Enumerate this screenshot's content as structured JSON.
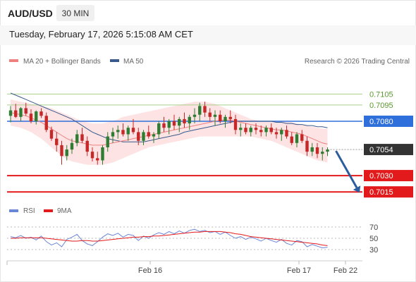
{
  "header": {
    "pair": "AUD/USD",
    "timeframe": "30 MIN",
    "datetime": "Tuesday, February 17, 2026 5:15:08 AM CET"
  },
  "legend": {
    "ma20": "MA 20 + Bollinger Bands",
    "ma50": "MA 50",
    "credit": "Research © 2026 Trading Central"
  },
  "rsi_legend": {
    "rsi": "RSI",
    "ma9": "9MA"
  },
  "colors": {
    "ma20": "#f08080",
    "bands": "#fde3e3",
    "ma50": "#3a5a8c",
    "candle_up": "#2e7d32",
    "candle_down": "#c62828",
    "resistance_green": "#a8d08d",
    "pivot": "#2f6fdc",
    "support_red": "#e31a1c",
    "current": "#333333",
    "arrow": "#2b5c9e",
    "rsi": "#6a86d8",
    "rsi_ma": "#e31a1c"
  },
  "chart_data": [
    {
      "type": "candlestick",
      "title": "AUD/USD",
      "timeframe": "30 MIN",
      "x_tick_labels": [
        "Feb 16",
        "Feb 17",
        "Feb 22"
      ],
      "ylim": [
        0.7008,
        0.7115
      ],
      "levels": [
        {
          "value": 0.7105,
          "label": "0.7105",
          "role": "resistance",
          "color": "#a8d08d"
        },
        {
          "value": 0.7095,
          "label": "0.7095",
          "role": "resistance",
          "color": "#a8d08d"
        },
        {
          "value": 0.708,
          "label": "0.7080",
          "role": "pivot",
          "color": "#2f6fdc"
        },
        {
          "value": 0.7054,
          "label": "0.7054",
          "role": "current",
          "color": "#333333"
        },
        {
          "value": 0.703,
          "label": "0.7030",
          "role": "support",
          "color": "#e31a1c"
        },
        {
          "value": 0.7015,
          "label": "0.7015",
          "role": "support",
          "color": "#e31a1c"
        }
      ],
      "forecast_arrow": {
        "from": 0.7054,
        "to": 0.7015,
        "direction": "down"
      },
      "candles": [
        [
          0.7085,
          0.7094,
          0.7079,
          0.709
        ],
        [
          0.709,
          0.7096,
          0.7083,
          0.7084
        ],
        [
          0.7084,
          0.7093,
          0.708,
          0.7092
        ],
        [
          0.7092,
          0.7097,
          0.7085,
          0.7087
        ],
        [
          0.7087,
          0.7091,
          0.7078,
          0.708
        ],
        [
          0.708,
          0.709,
          0.7077,
          0.7089
        ],
        [
          0.7089,
          0.7092,
          0.7083,
          0.7085
        ],
        [
          0.7085,
          0.7088,
          0.707,
          0.7072
        ],
        [
          0.7072,
          0.7075,
          0.7062,
          0.7064
        ],
        [
          0.7064,
          0.707,
          0.7052,
          0.7058
        ],
        [
          0.7058,
          0.7062,
          0.704,
          0.7048
        ],
        [
          0.7048,
          0.7058,
          0.7044,
          0.7054
        ],
        [
          0.7054,
          0.7064,
          0.705,
          0.706
        ],
        [
          0.706,
          0.7072,
          0.7057,
          0.7068
        ],
        [
          0.7068,
          0.7074,
          0.706,
          0.7062
        ],
        [
          0.7062,
          0.7066,
          0.7048,
          0.7052
        ],
        [
          0.7052,
          0.7056,
          0.7043,
          0.7046
        ],
        [
          0.7046,
          0.7052,
          0.704,
          0.7044
        ],
        [
          0.7044,
          0.7058,
          0.704,
          0.7056
        ],
        [
          0.7056,
          0.707,
          0.7052,
          0.7066
        ],
        [
          0.7066,
          0.7074,
          0.706,
          0.707
        ],
        [
          0.707,
          0.7076,
          0.7064,
          0.7072
        ],
        [
          0.7072,
          0.7078,
          0.7066,
          0.7068
        ],
        [
          0.7068,
          0.7076,
          0.7062,
          0.7074
        ],
        [
          0.7074,
          0.7082,
          0.7068,
          0.707
        ],
        [
          0.707,
          0.7074,
          0.7058,
          0.7062
        ],
        [
          0.7062,
          0.7072,
          0.7058,
          0.707
        ],
        [
          0.707,
          0.7076,
          0.7064,
          0.7066
        ],
        [
          0.7066,
          0.707,
          0.706,
          0.7068
        ],
        [
          0.7068,
          0.708,
          0.7064,
          0.7078
        ],
        [
          0.7078,
          0.7084,
          0.707,
          0.7074
        ],
        [
          0.7074,
          0.7082,
          0.7068,
          0.708
        ],
        [
          0.708,
          0.7086,
          0.7072,
          0.7076
        ],
        [
          0.7076,
          0.7084,
          0.707,
          0.7082
        ],
        [
          0.7082,
          0.7088,
          0.7074,
          0.7078
        ],
        [
          0.7078,
          0.7086,
          0.7072,
          0.7084
        ],
        [
          0.7084,
          0.7092,
          0.7078,
          0.7086
        ],
        [
          0.7086,
          0.7097,
          0.708,
          0.7094
        ],
        [
          0.7094,
          0.7098,
          0.7084,
          0.7088
        ],
        [
          0.7088,
          0.7092,
          0.708,
          0.7084
        ],
        [
          0.7084,
          0.709,
          0.7076,
          0.7086
        ],
        [
          0.7086,
          0.709,
          0.7078,
          0.708
        ],
        [
          0.708,
          0.7086,
          0.7074,
          0.7084
        ],
        [
          0.7084,
          0.709,
          0.7078,
          0.7082
        ],
        [
          0.7082,
          0.7086,
          0.7068,
          0.7072
        ],
        [
          0.7072,
          0.7078,
          0.7066,
          0.7074
        ],
        [
          0.7074,
          0.7078,
          0.7068,
          0.707
        ],
        [
          0.707,
          0.7076,
          0.7066,
          0.7074
        ],
        [
          0.7074,
          0.7078,
          0.7068,
          0.7072
        ],
        [
          0.7072,
          0.7076,
          0.7066,
          0.707
        ],
        [
          0.707,
          0.7076,
          0.7066,
          0.7074
        ],
        [
          0.7074,
          0.7078,
          0.7068,
          0.707
        ],
        [
          0.707,
          0.7074,
          0.7064,
          0.7068
        ],
        [
          0.7068,
          0.7074,
          0.7062,
          0.7072
        ],
        [
          0.7072,
          0.7076,
          0.7064,
          0.7066
        ],
        [
          0.7066,
          0.707,
          0.7058,
          0.706
        ],
        [
          0.706,
          0.707,
          0.7056,
          0.7068
        ],
        [
          0.7068,
          0.7072,
          0.706,
          0.7062
        ],
        [
          0.7062,
          0.7066,
          0.7048,
          0.7052
        ],
        [
          0.7052,
          0.706,
          0.7048,
          0.7056
        ],
        [
          0.7056,
          0.706,
          0.7046,
          0.705
        ],
        [
          0.705,
          0.7056,
          0.7044,
          0.7052
        ],
        [
          0.7052,
          0.7056,
          0.7048,
          0.7054
        ]
      ],
      "ma20": [
        0.7088,
        0.7087,
        0.7086,
        0.7085,
        0.7083,
        0.7081,
        0.7079,
        0.7076,
        0.7073,
        0.707,
        0.7067,
        0.7064,
        0.7062,
        0.7061,
        0.706,
        0.7059,
        0.7058,
        0.7058,
        0.7058,
        0.7059,
        0.706,
        0.7061,
        0.7062,
        0.7063,
        0.7064,
        0.7065,
        0.7066,
        0.7067,
        0.7068,
        0.7069,
        0.707,
        0.7071,
        0.7072,
        0.7073,
        0.7074,
        0.7075,
        0.7076,
        0.7077,
        0.7078,
        0.7079,
        0.708,
        0.7081,
        0.7081,
        0.7081,
        0.708,
        0.7079,
        0.7078,
        0.7077,
        0.7076,
        0.7075,
        0.7074,
        0.7073,
        0.7072,
        0.7072,
        0.7071,
        0.707,
        0.7069,
        0.7068,
        0.7066,
        0.7064,
        0.7062,
        0.706,
        0.7059
      ],
      "bb_upper": [
        0.71,
        0.7099,
        0.7098,
        0.7097,
        0.7096,
        0.7095,
        0.7094,
        0.7093,
        0.7092,
        0.709,
        0.7088,
        0.7086,
        0.7084,
        0.7082,
        0.708,
        0.7079,
        0.7078,
        0.7078,
        0.7078,
        0.7079,
        0.708,
        0.7082,
        0.7084,
        0.7085,
        0.7086,
        0.7087,
        0.7088,
        0.7089,
        0.709,
        0.7091,
        0.7092,
        0.7093,
        0.7094,
        0.7095,
        0.7096,
        0.7097,
        0.7098,
        0.7098,
        0.7098,
        0.7097,
        0.7096,
        0.7094,
        0.7092,
        0.709,
        0.7088,
        0.7086,
        0.7084,
        0.7082,
        0.7081,
        0.708,
        0.708,
        0.708,
        0.708,
        0.708,
        0.708,
        0.7079,
        0.7078,
        0.7077,
        0.7076,
        0.7075,
        0.7074,
        0.7073,
        0.7073
      ],
      "bb_lower": [
        0.7076,
        0.7075,
        0.7074,
        0.7072,
        0.707,
        0.7067,
        0.7064,
        0.706,
        0.7056,
        0.7052,
        0.7048,
        0.7045,
        0.7043,
        0.7042,
        0.7041,
        0.704,
        0.704,
        0.704,
        0.704,
        0.7041,
        0.7042,
        0.7044,
        0.7046,
        0.7048,
        0.705,
        0.7052,
        0.7054,
        0.7056,
        0.7057,
        0.7058,
        0.7059,
        0.706,
        0.7061,
        0.7062,
        0.7063,
        0.7064,
        0.7065,
        0.7066,
        0.7066,
        0.7066,
        0.7066,
        0.7066,
        0.7066,
        0.7066,
        0.7066,
        0.7066,
        0.7066,
        0.7066,
        0.7065,
        0.7064,
        0.7063,
        0.7062,
        0.706,
        0.7058,
        0.7056,
        0.7054,
        0.7052,
        0.705,
        0.7048,
        0.7046,
        0.7044,
        0.7043,
        0.7042
      ],
      "ma50": [
        0.7106,
        0.7104,
        0.7102,
        0.71,
        0.7098,
        0.7096,
        0.7094,
        0.7092,
        0.709,
        0.7088,
        0.7086,
        0.7084,
        0.7082,
        0.7079,
        0.7076,
        0.7073,
        0.707,
        0.7068,
        0.7066,
        0.7064,
        0.7063,
        0.7062,
        0.7061,
        0.7061,
        0.7061,
        0.7061,
        0.7061,
        0.7062,
        0.7063,
        0.7064,
        0.7065,
        0.7066,
        0.7067,
        0.7068,
        0.707,
        0.7071,
        0.7072,
        0.7073,
        0.7074,
        0.7075,
        0.7076,
        0.7077,
        0.7078,
        0.7079,
        0.708,
        0.708,
        0.708,
        0.708,
        0.708,
        0.708,
        0.708,
        0.708,
        0.7079,
        0.7079,
        0.7078,
        0.7078,
        0.7077,
        0.7077,
        0.7076,
        0.7076,
        0.7075,
        0.7075,
        0.7074
      ]
    },
    {
      "type": "line",
      "title": "RSI",
      "yticks": [
        70,
        50,
        30
      ],
      "ylim": [
        20,
        75
      ],
      "series": [
        {
          "name": "RSI",
          "values": [
            53,
            51,
            55,
            50,
            52,
            47,
            54,
            44,
            38,
            42,
            35,
            48,
            52,
            57,
            46,
            40,
            37,
            44,
            52,
            58,
            55,
            59,
            52,
            57,
            55,
            46,
            54,
            50,
            56,
            60,
            57,
            62,
            58,
            63,
            59,
            64,
            66,
            62,
            64,
            60,
            62,
            57,
            61,
            55,
            50,
            53,
            48,
            52,
            49,
            45,
            50,
            46,
            43,
            48,
            41,
            38,
            46,
            44,
            35,
            39,
            36,
            33,
            34
          ]
        },
        {
          "name": "9MA",
          "values": [
            50,
            50,
            51,
            51,
            51,
            51,
            51,
            50,
            49,
            48,
            47,
            46,
            45,
            45,
            46,
            46,
            45,
            45,
            46,
            47,
            48,
            49,
            50,
            51,
            52,
            52,
            53,
            53,
            54,
            54,
            55,
            56,
            57,
            58,
            59,
            60,
            61,
            61,
            62,
            62,
            62,
            62,
            61,
            60,
            58,
            57,
            55,
            53,
            52,
            51,
            50,
            49,
            48,
            47,
            46,
            45,
            44,
            43,
            42,
            41,
            40,
            38,
            37
          ]
        }
      ]
    }
  ]
}
